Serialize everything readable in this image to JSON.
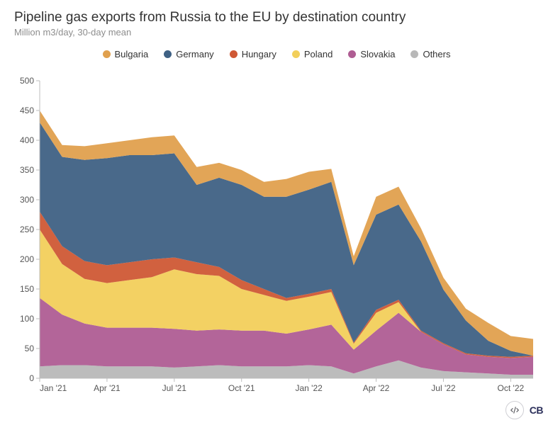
{
  "chart": {
    "type": "area-stacked",
    "title": "Pipeline gas exports from Russia to the EU by destination country",
    "subtitle": "Million m3/day, 30-day mean",
    "background_color": "#ffffff",
    "title_fontsize": 19,
    "subtitle_fontsize": 13,
    "label_fontsize": 12,
    "axis_color": "#bdbdbd",
    "text_color": "#333333",
    "subtitle_color": "#8d8d8d",
    "ylim": [
      0,
      500
    ],
    "ytick_step": 50,
    "xticks": [
      "Jan '21",
      "Apr '21",
      "Jul '21",
      "Oct '21",
      "Jan '22",
      "Apr '22",
      "Jul '22",
      "Oct '22"
    ],
    "x_points": [
      0,
      1,
      2,
      3,
      4,
      5,
      6,
      7,
      8,
      9,
      10,
      11,
      12,
      13,
      14,
      15,
      16,
      17,
      18,
      19,
      20,
      21,
      22
    ],
    "series": [
      {
        "name": "Others",
        "color": "#b8b8b8",
        "values": [
          20,
          22,
          22,
          20,
          20,
          20,
          18,
          20,
          22,
          20,
          20,
          20,
          22,
          20,
          8,
          20,
          30,
          18,
          12,
          10,
          8,
          6,
          6
        ]
      },
      {
        "name": "Slovakia",
        "color": "#af5d93",
        "values": [
          115,
          85,
          70,
          65,
          65,
          65,
          65,
          60,
          60,
          60,
          60,
          55,
          60,
          70,
          40,
          60,
          80,
          60,
          45,
          30,
          28,
          28,
          30
        ]
      },
      {
        "name": "Poland",
        "color": "#f2cf5b",
        "values": [
          115,
          85,
          75,
          75,
          80,
          85,
          100,
          95,
          90,
          70,
          60,
          55,
          55,
          55,
          10,
          30,
          18,
          0,
          0,
          0,
          0,
          0,
          0
        ]
      },
      {
        "name": "Hungary",
        "color": "#cf5835",
        "values": [
          30,
          30,
          30,
          30,
          30,
          30,
          20,
          20,
          15,
          15,
          10,
          5,
          5,
          5,
          2,
          5,
          4,
          2,
          2,
          2,
          2,
          2,
          2
        ]
      },
      {
        "name": "Germany",
        "color": "#3f6184",
        "values": [
          150,
          150,
          170,
          180,
          180,
          175,
          175,
          130,
          150,
          160,
          155,
          170,
          175,
          180,
          130,
          160,
          160,
          150,
          90,
          55,
          25,
          10,
          0
        ]
      },
      {
        "name": "Bulgaria",
        "color": "#e0a04e",
        "values": [
          20,
          20,
          23,
          25,
          25,
          30,
          30,
          30,
          25,
          25,
          25,
          30,
          30,
          22,
          15,
          30,
          30,
          22,
          20,
          20,
          30,
          25,
          28
        ]
      }
    ],
    "legend_order": [
      "Bulgaria",
      "Germany",
      "Hungary",
      "Poland",
      "Slovakia",
      "Others"
    ],
    "footer_logo": "CB"
  }
}
